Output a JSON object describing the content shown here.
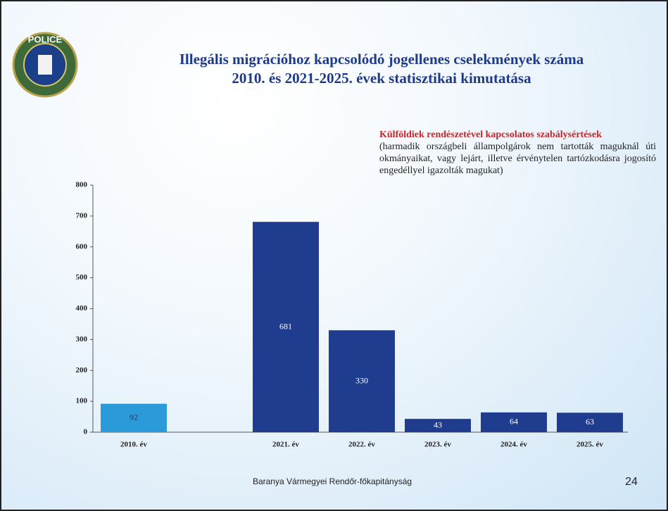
{
  "logo_text": "POLICE",
  "chart_data": {
    "type": "bar",
    "title": [
      "Illegális migrációhoz kapcsolódó jogellenes cselekmények száma",
      "2010. és 2021-2025. évek statisztikai kimutatása"
    ],
    "annotation": {
      "title": "Külföldiek rendészetével kapcsolatos szabálysértések",
      "text": "(harmadik országbeli állampolgárok nem tartották maguknál úti okmányaikat, vagy lejárt, illetve érvénytelen tartózkodásra jogosító engedéllyel igazolták magukat)"
    },
    "categories": [
      "2010. év",
      null,
      "2021. év",
      "2022. év",
      "2023. év",
      "2024. év",
      "2025. év"
    ],
    "values": [
      92,
      null,
      681,
      330,
      43,
      64,
      63
    ],
    "colors": [
      "#2a9ad8",
      null,
      "#1f3c8f",
      "#1f3c8f",
      "#1f3c8f",
      "#1f3c8f",
      "#1f3c8f"
    ],
    "ylim": [
      0,
      800
    ],
    "yticks": [
      0,
      100,
      200,
      300,
      400,
      500,
      600,
      700,
      800
    ]
  },
  "footer": {
    "text": "Baranya Vármegyei Rendőr-főkapitányság",
    "page": "24"
  }
}
